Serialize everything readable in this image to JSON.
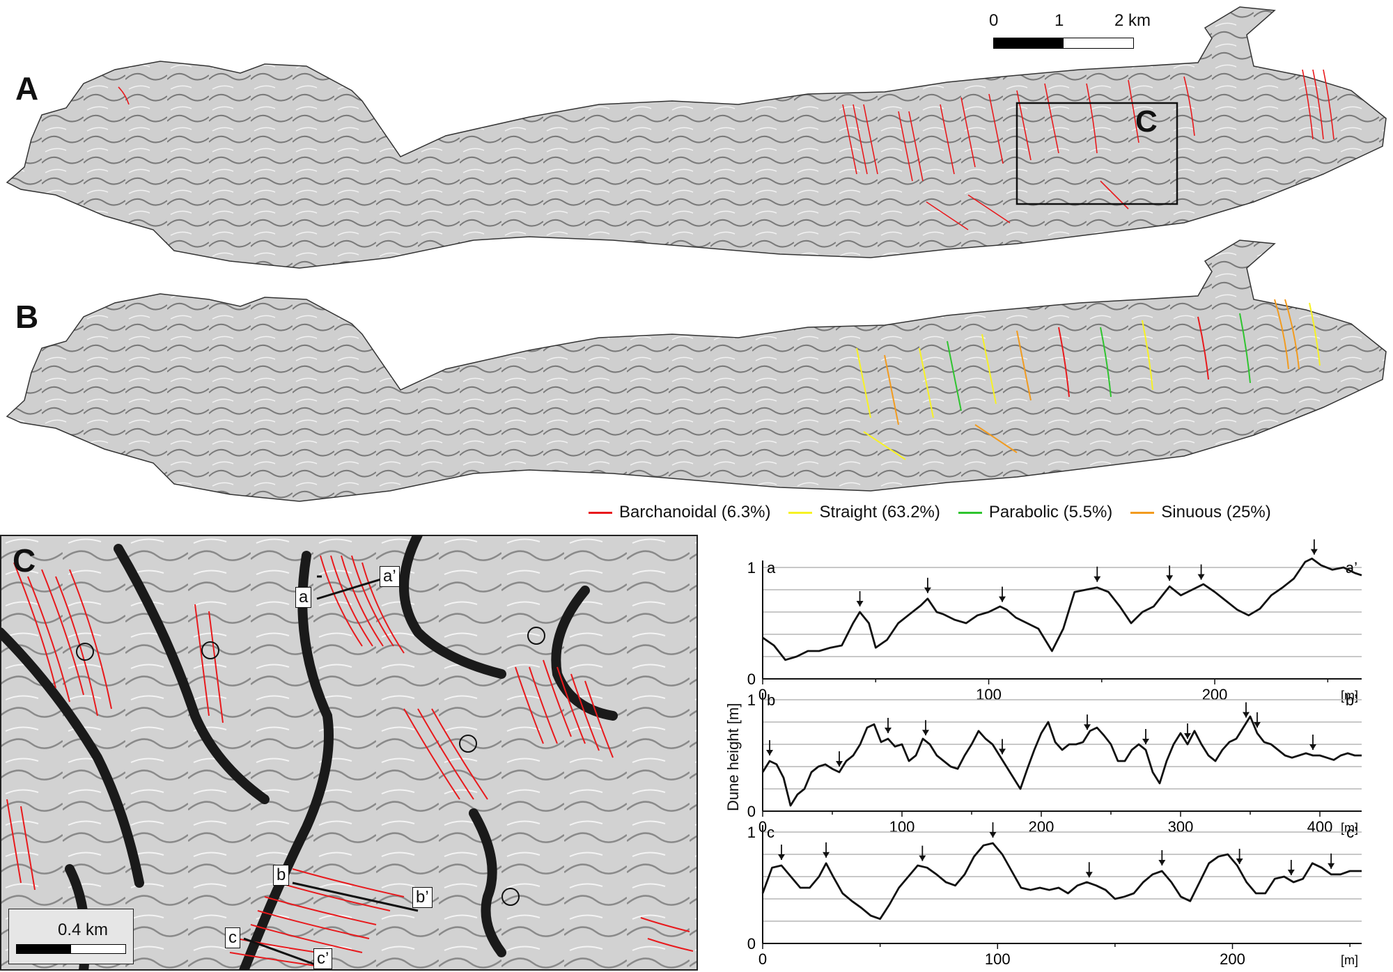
{
  "panels": {
    "a_label": "A",
    "b_label": "B",
    "c_label": "C",
    "inset_label": "C"
  },
  "scalebar_top": {
    "tick0": "0",
    "tick1": "1",
    "tick2": "2 km"
  },
  "scalebar_c": {
    "label": "0.4 km"
  },
  "legend": [
    {
      "label": "Barchanoidal (6.3%)",
      "color": "#e8191c"
    },
    {
      "label": "Straight (63.2%)",
      "color": "#f7f224"
    },
    {
      "label": "Parabolic (5.5%)",
      "color": "#2fc42f"
    },
    {
      "label": "Sinuous (25%)",
      "color": "#f29b1f"
    }
  ],
  "profile_tags": {
    "a": "a",
    "a_prime": "a’",
    "b": "b",
    "b_prime": "b’",
    "c": "c",
    "c_prime": "c’"
  },
  "colors": {
    "crest_line": "#e8191c",
    "hillshade": "#c8c8c8"
  },
  "chart_data": [
    {
      "type": "line",
      "start_label": "a",
      "end_label": "a’",
      "ylabel": "Dune height [m]",
      "x_unit": "[m]",
      "xlim": [
        0,
        265
      ],
      "ylim": [
        0,
        1
      ],
      "xticks": [
        0,
        100,
        200
      ],
      "yticks": [
        0,
        1
      ],
      "x": [
        0,
        5,
        10,
        15,
        20,
        25,
        30,
        35,
        40,
        43,
        47,
        50,
        55,
        60,
        65,
        70,
        73,
        77,
        80,
        85,
        90,
        95,
        100,
        105,
        108,
        112,
        117,
        122,
        128,
        133,
        138,
        143,
        148,
        153,
        158,
        163,
        168,
        173,
        178,
        180,
        185,
        190,
        195,
        200,
        205,
        210,
        215,
        220,
        225,
        230,
        235,
        240,
        243,
        247,
        252,
        257,
        262,
        265
      ],
      "values": [
        0.37,
        0.3,
        0.17,
        0.2,
        0.25,
        0.25,
        0.28,
        0.3,
        0.5,
        0.6,
        0.5,
        0.28,
        0.35,
        0.5,
        0.58,
        0.66,
        0.72,
        0.6,
        0.58,
        0.53,
        0.5,
        0.57,
        0.6,
        0.65,
        0.62,
        0.55,
        0.5,
        0.45,
        0.25,
        0.45,
        0.78,
        0.8,
        0.82,
        0.78,
        0.65,
        0.5,
        0.6,
        0.65,
        0.78,
        0.83,
        0.75,
        0.8,
        0.85,
        0.78,
        0.7,
        0.62,
        0.57,
        0.63,
        0.75,
        0.82,
        0.9,
        1.05,
        1.08,
        1.02,
        0.98,
        1.0,
        0.95,
        0.93
      ],
      "arrows_x": [
        43,
        73,
        106,
        148,
        180,
        194,
        244
      ]
    },
    {
      "type": "line",
      "start_label": "b",
      "end_label": "b’",
      "x_unit": "[m]",
      "xlim": [
        0,
        430
      ],
      "ylim": [
        0,
        1
      ],
      "xticks": [
        0,
        100,
        200,
        300,
        400
      ],
      "yticks": [
        0,
        1
      ],
      "x": [
        0,
        5,
        10,
        15,
        20,
        25,
        30,
        35,
        40,
        45,
        50,
        55,
        60,
        65,
        70,
        75,
        80,
        85,
        90,
        95,
        100,
        105,
        110,
        115,
        120,
        125,
        130,
        135,
        140,
        145,
        150,
        155,
        160,
        165,
        170,
        175,
        180,
        185,
        190,
        195,
        200,
        205,
        210,
        215,
        220,
        225,
        230,
        235,
        240,
        245,
        250,
        255,
        260,
        265,
        270,
        275,
        280,
        285,
        290,
        295,
        300,
        305,
        310,
        315,
        320,
        325,
        330,
        335,
        340,
        345,
        350,
        355,
        360,
        365,
        370,
        375,
        380,
        385,
        390,
        395,
        400,
        405,
        410,
        415,
        420,
        425,
        430
      ],
      "values": [
        0.35,
        0.45,
        0.42,
        0.3,
        0.05,
        0.15,
        0.2,
        0.35,
        0.4,
        0.42,
        0.38,
        0.35,
        0.45,
        0.5,
        0.6,
        0.75,
        0.78,
        0.62,
        0.65,
        0.58,
        0.6,
        0.45,
        0.5,
        0.65,
        0.6,
        0.5,
        0.45,
        0.4,
        0.38,
        0.5,
        0.6,
        0.72,
        0.65,
        0.6,
        0.5,
        0.4,
        0.3,
        0.2,
        0.38,
        0.55,
        0.7,
        0.8,
        0.62,
        0.55,
        0.6,
        0.6,
        0.62,
        0.72,
        0.75,
        0.68,
        0.6,
        0.45,
        0.45,
        0.55,
        0.6,
        0.55,
        0.35,
        0.25,
        0.45,
        0.6,
        0.7,
        0.6,
        0.72,
        0.6,
        0.5,
        0.45,
        0.55,
        0.62,
        0.65,
        0.75,
        0.85,
        0.7,
        0.62,
        0.6,
        0.55,
        0.5,
        0.48,
        0.5,
        0.52,
        0.5,
        0.5,
        0.48,
        0.46,
        0.5,
        0.52,
        0.5,
        0.5
      ],
      "arrows_x": [
        5,
        55,
        90,
        117,
        172,
        233,
        275,
        305,
        347,
        355,
        395
      ]
    },
    {
      "type": "line",
      "start_label": "c",
      "end_label": "c’",
      "x_unit": "[m]",
      "xlim": [
        0,
        255
      ],
      "ylim": [
        0,
        1
      ],
      "xticks": [
        0,
        100,
        200
      ],
      "yticks": [
        0,
        1
      ],
      "x": [
        0,
        4,
        8,
        12,
        16,
        20,
        24,
        27,
        30,
        34,
        38,
        42,
        46,
        50,
        54,
        58,
        62,
        66,
        70,
        74,
        78,
        82,
        86,
        90,
        94,
        98,
        102,
        106,
        110,
        114,
        118,
        122,
        126,
        130,
        134,
        138,
        142,
        146,
        150,
        154,
        158,
        162,
        166,
        170,
        174,
        178,
        182,
        186,
        190,
        194,
        198,
        202,
        206,
        210,
        214,
        218,
        222,
        226,
        230,
        234,
        238,
        242,
        246,
        250,
        255
      ],
      "values": [
        0.45,
        0.68,
        0.7,
        0.6,
        0.5,
        0.5,
        0.6,
        0.72,
        0.6,
        0.45,
        0.38,
        0.32,
        0.25,
        0.22,
        0.35,
        0.5,
        0.6,
        0.7,
        0.68,
        0.62,
        0.55,
        0.52,
        0.62,
        0.78,
        0.88,
        0.9,
        0.8,
        0.65,
        0.5,
        0.48,
        0.5,
        0.48,
        0.5,
        0.45,
        0.52,
        0.55,
        0.52,
        0.48,
        0.4,
        0.42,
        0.45,
        0.55,
        0.62,
        0.65,
        0.55,
        0.42,
        0.38,
        0.55,
        0.72,
        0.78,
        0.8,
        0.7,
        0.55,
        0.45,
        0.45,
        0.58,
        0.6,
        0.55,
        0.58,
        0.72,
        0.68,
        0.62,
        0.62,
        0.65,
        0.65
      ],
      "arrows_x": [
        8,
        27,
        68,
        98,
        139,
        170,
        203,
        225,
        242
      ]
    }
  ]
}
